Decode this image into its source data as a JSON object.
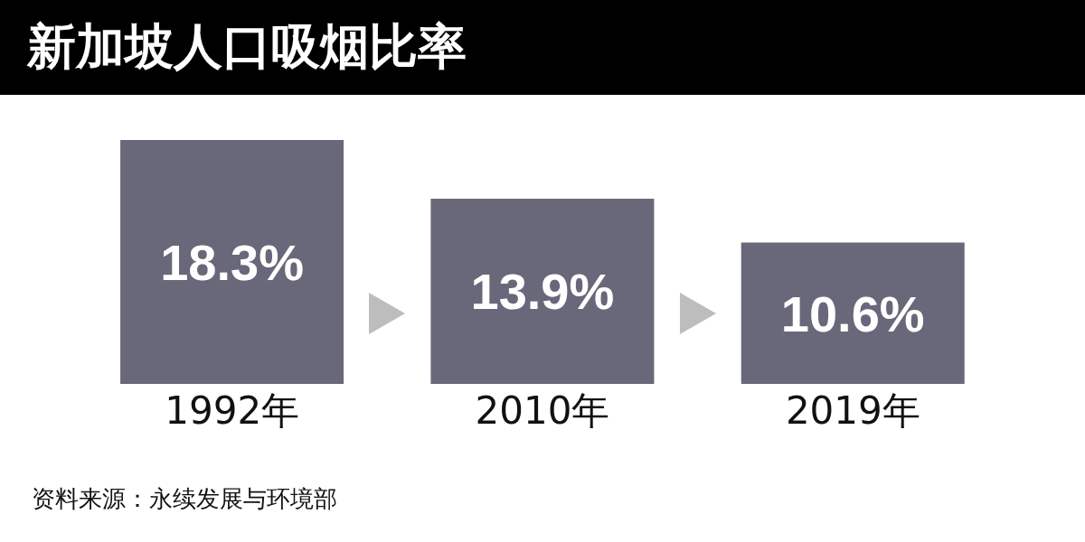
{
  "chart_data": {
    "type": "bar",
    "title": "新加坡人口吸烟比率",
    "categories": [
      "1992年",
      "2010年",
      "2019年"
    ],
    "values": [
      18.3,
      13.9,
      10.6
    ],
    "value_labels": [
      "18.3%",
      "13.9%",
      "10.6%"
    ],
    "color": "#68687a",
    "annotations": [
      "资料来源：永续发展与环境部"
    ]
  }
}
